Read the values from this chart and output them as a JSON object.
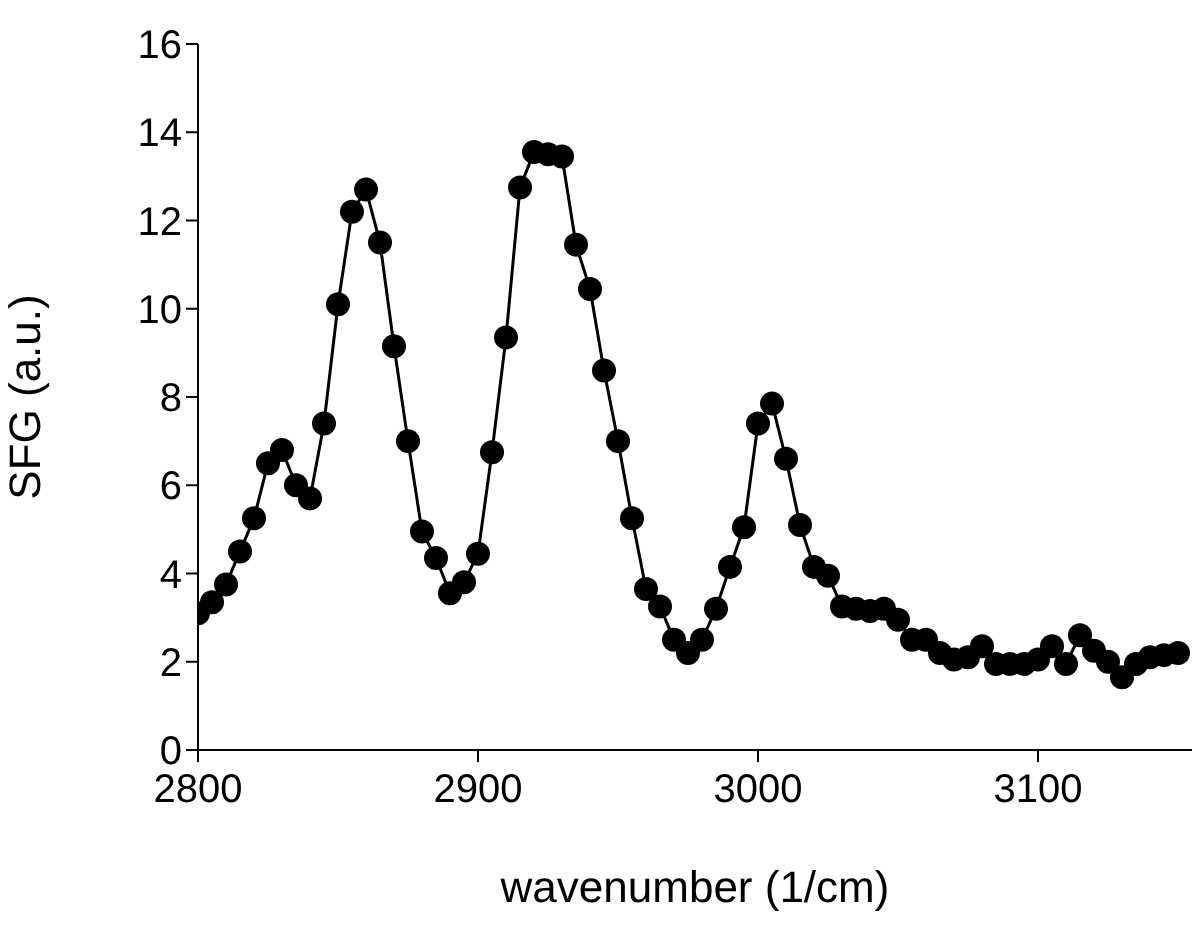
{
  "chart_data": {
    "type": "line",
    "xlabel": "wavenumber (1/cm)",
    "ylabel": "SFG (a.u.)",
    "x": [
      2800,
      2805,
      2810,
      2815,
      2820,
      2825,
      2830,
      2835,
      2840,
      2845,
      2850,
      2855,
      2860,
      2865,
      2870,
      2875,
      2880,
      2885,
      2890,
      2895,
      2900,
      2905,
      2910,
      2915,
      2920,
      2925,
      2930,
      2935,
      2940,
      2945,
      2950,
      2955,
      2960,
      2965,
      2970,
      2975,
      2980,
      2985,
      2990,
      2995,
      3000,
      3005,
      3010,
      3015,
      3020,
      3025,
      3030,
      3035,
      3040,
      3045,
      3050,
      3055,
      3060,
      3065,
      3070,
      3075,
      3080,
      3085,
      3090,
      3095,
      3100,
      3105,
      3110,
      3115,
      3120,
      3125,
      3130,
      3135,
      3140,
      3145,
      3150
    ],
    "series": [
      {
        "color": "#000000",
        "values": [
          3.1,
          3.35,
          3.75,
          4.5,
          5.25,
          6.5,
          6.8,
          6.0,
          5.7,
          7.4,
          10.1,
          12.2,
          12.7,
          11.5,
          9.15,
          7.0,
          4.95,
          4.35,
          3.55,
          3.8,
          4.45,
          6.75,
          9.35,
          12.75,
          13.55,
          13.5,
          13.45,
          11.45,
          10.45,
          8.6,
          7.0,
          5.25,
          3.65,
          3.25,
          2.5,
          2.2,
          2.5,
          3.2,
          4.15,
          5.05,
          7.4,
          7.85,
          6.6,
          5.1,
          4.15,
          3.95,
          3.25,
          3.2,
          3.15,
          3.2,
          2.95,
          2.5,
          2.5,
          2.2,
          2.05,
          2.1,
          2.35,
          1.95,
          1.95,
          1.95,
          2.05,
          2.35,
          1.95,
          2.6,
          2.25,
          2.0,
          1.65,
          1.95,
          2.1,
          2.15,
          2.2
        ]
      }
    ],
    "xlim": [
      2800,
      3155
    ],
    "xticks": [
      2800,
      2900,
      3000,
      3100
    ],
    "ylim": [
      0,
      16
    ],
    "yticks": [
      0,
      2,
      4,
      6,
      8,
      10,
      12,
      14,
      16
    ],
    "grid": false,
    "legend": false,
    "marker": "circle",
    "line_style": "solid"
  }
}
